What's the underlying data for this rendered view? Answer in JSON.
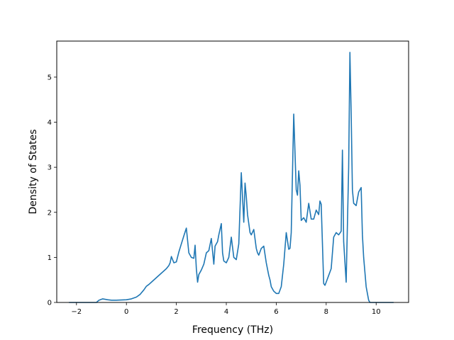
{
  "chart_data": {
    "type": "line",
    "title": "",
    "xlabel": "Frequency (THz)",
    "ylabel": "Density of States",
    "xlim": [
      -2.79,
      11.3
    ],
    "ylim": [
      0,
      5.8
    ],
    "grid": false,
    "xticks": [
      -2,
      0,
      2,
      4,
      6,
      8,
      10
    ],
    "xtick_labels": [
      "−2",
      "0",
      "2",
      "4",
      "6",
      "8",
      "10"
    ],
    "yticks": [
      0,
      1,
      2,
      3,
      4,
      5
    ],
    "ytick_labels": [
      "0",
      "1",
      "2",
      "3",
      "4",
      "5"
    ],
    "series": [
      {
        "color": "#1f77b4",
        "x": [
          -2.3,
          -1.2,
          -1.1,
          -0.95,
          -0.85,
          -0.75,
          -0.6,
          -0.4,
          0.0,
          0.2,
          0.4,
          0.55,
          0.7,
          0.8,
          0.9,
          1.0,
          1.2,
          1.4,
          1.6,
          1.7,
          1.75,
          1.8,
          1.9,
          2.0,
          2.1,
          2.2,
          2.3,
          2.4,
          2.5,
          2.6,
          2.7,
          2.75,
          2.8,
          2.85,
          2.9,
          3.0,
          3.1,
          3.2,
          3.3,
          3.4,
          3.5,
          3.55,
          3.65,
          3.7,
          3.8,
          3.85,
          3.9,
          4.0,
          4.1,
          4.2,
          4.3,
          4.4,
          4.5,
          4.6,
          4.7,
          4.75,
          4.8,
          4.85,
          4.9,
          4.95,
          5.0,
          5.1,
          5.2,
          5.25,
          5.3,
          5.4,
          5.5,
          5.6,
          5.7,
          5.75,
          5.8,
          5.9,
          6.0,
          6.1,
          6.2,
          6.3,
          6.4,
          6.5,
          6.55,
          6.6,
          6.7,
          6.8,
          6.85,
          6.9,
          6.95,
          7.0,
          7.1,
          7.2,
          7.3,
          7.4,
          7.5,
          7.6,
          7.7,
          7.75,
          7.8,
          7.9,
          7.95,
          8.0,
          8.1,
          8.2,
          8.3,
          8.4,
          8.5,
          8.6,
          8.65,
          8.7,
          8.8,
          8.9,
          8.95,
          9.0,
          9.05,
          9.1,
          9.2,
          9.3,
          9.4,
          9.45,
          9.5,
          9.6,
          9.7,
          9.75,
          9.8,
          10.0,
          10.5,
          10.7
        ],
        "y": [
          0.0,
          0.0,
          0.05,
          0.08,
          0.07,
          0.06,
          0.05,
          0.05,
          0.06,
          0.08,
          0.12,
          0.18,
          0.28,
          0.36,
          0.4,
          0.45,
          0.55,
          0.65,
          0.75,
          0.82,
          0.88,
          1.02,
          0.88,
          0.9,
          1.12,
          1.3,
          1.48,
          1.65,
          1.1,
          1.0,
          0.98,
          1.27,
          0.75,
          0.45,
          0.62,
          0.72,
          0.85,
          1.1,
          1.15,
          1.42,
          0.85,
          1.25,
          1.35,
          1.5,
          1.75,
          1.1,
          0.92,
          0.88,
          1.0,
          1.45,
          1.0,
          0.95,
          1.3,
          2.88,
          1.78,
          2.65,
          2.35,
          1.95,
          1.75,
          1.55,
          1.5,
          1.62,
          1.2,
          1.1,
          1.05,
          1.2,
          1.25,
          0.88,
          0.6,
          0.5,
          0.35,
          0.25,
          0.2,
          0.2,
          0.35,
          0.85,
          1.55,
          1.18,
          1.2,
          1.55,
          4.18,
          2.5,
          2.38,
          2.92,
          2.6,
          1.82,
          1.88,
          1.78,
          2.2,
          1.85,
          1.85,
          2.05,
          1.95,
          2.25,
          2.18,
          0.42,
          0.38,
          0.45,
          0.6,
          0.75,
          1.45,
          1.55,
          1.5,
          1.58,
          3.38,
          1.35,
          0.45,
          3.0,
          5.55,
          4.2,
          2.5,
          2.2,
          2.15,
          2.45,
          2.55,
          1.5,
          1.0,
          0.35,
          0.05,
          0.0,
          0.0,
          0.0,
          0.0,
          0.0
        ]
      }
    ]
  }
}
